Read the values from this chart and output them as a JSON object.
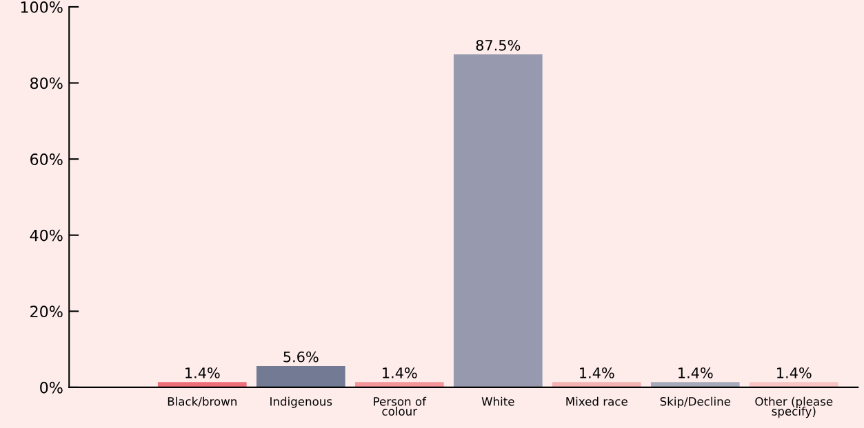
{
  "chart_data": {
    "type": "bar",
    "categories": [
      "Black/brown",
      "Indigenous",
      "Person of\ncolour",
      "White",
      "Mixed race",
      "Skip/Decline",
      "Other (please\nspecify)"
    ],
    "values": [
      1.4,
      5.6,
      1.4,
      87.5,
      1.4,
      1.4,
      1.4
    ],
    "value_labels": [
      "1.4%",
      "5.6%",
      "1.4%",
      "87.5%",
      "1.4%",
      "1.4%",
      "1.4%"
    ],
    "colors": [
      "#ee6f7a",
      "#727a94",
      "#f4969a",
      "#979aae",
      "#f5b2b2",
      "#a7aab9",
      "#f8c4c4"
    ],
    "ylim": [
      0,
      100
    ],
    "yticks": [
      {
        "value": 0,
        "label": "0%"
      },
      {
        "value": 20,
        "label": "20%"
      },
      {
        "value": 40,
        "label": "40%"
      },
      {
        "value": 60,
        "label": "60%"
      },
      {
        "value": 80,
        "label": "80%"
      },
      {
        "value": 100,
        "label": "100%"
      }
    ],
    "grid": false
  }
}
